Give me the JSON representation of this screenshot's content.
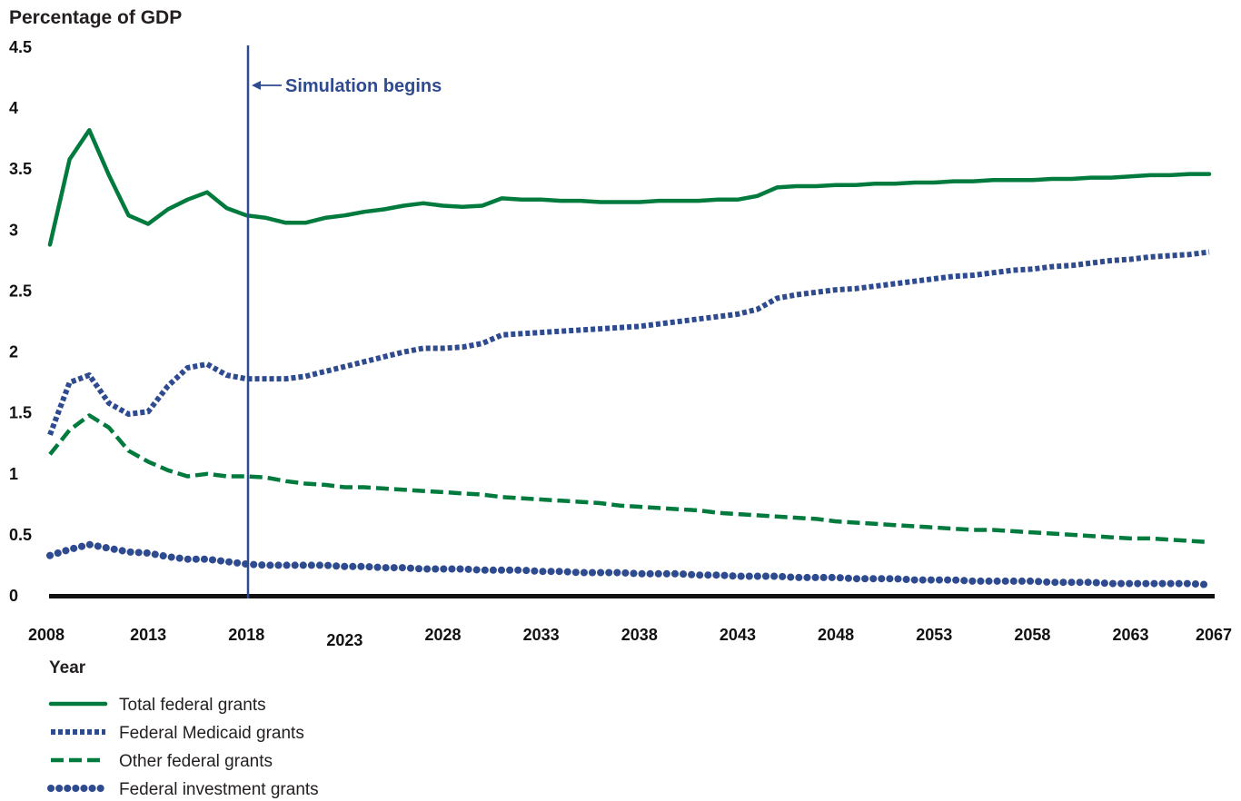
{
  "chart_data": {
    "type": "line",
    "ylabel": "Percentage of GDP",
    "xlabel": "Year",
    "ylim": [
      0,
      4.5
    ],
    "xlim": [
      2008,
      2067
    ],
    "y_ticks": [
      "0",
      "0.5",
      "1",
      "1.5",
      "2",
      "2.5",
      "3",
      "3.5",
      "4",
      "4.5"
    ],
    "x_ticks": [
      "2008",
      "2013",
      "2018",
      "2023",
      "2028",
      "2033",
      "2038",
      "2043",
      "2048",
      "2053",
      "2058",
      "2063",
      "2067"
    ],
    "grid": false,
    "legend_position": "bottom-left",
    "annotation": {
      "text": "Simulation begins",
      "x": 2018
    },
    "x": [
      2008,
      2009,
      2010,
      2011,
      2012,
      2013,
      2014,
      2015,
      2016,
      2017,
      2018,
      2019,
      2020,
      2021,
      2022,
      2023,
      2024,
      2025,
      2026,
      2027,
      2028,
      2029,
      2030,
      2031,
      2032,
      2033,
      2034,
      2035,
      2036,
      2037,
      2038,
      2039,
      2040,
      2041,
      2042,
      2043,
      2044,
      2045,
      2046,
      2047,
      2048,
      2049,
      2050,
      2051,
      2052,
      2053,
      2054,
      2055,
      2056,
      2057,
      2058,
      2059,
      2060,
      2061,
      2062,
      2063,
      2064,
      2065,
      2066,
      2067
    ],
    "series": [
      {
        "name": "Total federal grants",
        "color": "#007a3d",
        "style": "solid",
        "values": [
          2.88,
          3.58,
          3.82,
          3.45,
          3.12,
          3.05,
          3.17,
          3.25,
          3.31,
          3.18,
          3.12,
          3.1,
          3.06,
          3.06,
          3.1,
          3.12,
          3.15,
          3.17,
          3.2,
          3.22,
          3.2,
          3.19,
          3.2,
          3.26,
          3.25,
          3.25,
          3.24,
          3.24,
          3.23,
          3.23,
          3.23,
          3.24,
          3.24,
          3.24,
          3.25,
          3.25,
          3.28,
          3.35,
          3.36,
          3.36,
          3.37,
          3.37,
          3.38,
          3.38,
          3.39,
          3.39,
          3.4,
          3.4,
          3.41,
          3.41,
          3.41,
          3.42,
          3.42,
          3.43,
          3.43,
          3.44,
          3.45,
          3.45,
          3.46,
          3.46
        ]
      },
      {
        "name": "Federal Medicaid grants",
        "color": "#2f4b8f",
        "style": "dotted",
        "values": [
          1.32,
          1.75,
          1.81,
          1.58,
          1.49,
          1.51,
          1.72,
          1.87,
          1.9,
          1.81,
          1.78,
          1.78,
          1.78,
          1.8,
          1.84,
          1.88,
          1.92,
          1.96,
          2.0,
          2.03,
          2.03,
          2.04,
          2.07,
          2.14,
          2.15,
          2.16,
          2.17,
          2.18,
          2.19,
          2.2,
          2.21,
          2.23,
          2.25,
          2.27,
          2.29,
          2.31,
          2.35,
          2.44,
          2.47,
          2.49,
          2.51,
          2.52,
          2.54,
          2.56,
          2.58,
          2.6,
          2.62,
          2.63,
          2.65,
          2.67,
          2.68,
          2.7,
          2.71,
          2.73,
          2.75,
          2.76,
          2.78,
          2.79,
          2.8,
          2.82
        ]
      },
      {
        "name": "Other federal grants",
        "color": "#007a3d",
        "style": "dashed",
        "values": [
          1.16,
          1.36,
          1.48,
          1.38,
          1.19,
          1.1,
          1.03,
          0.98,
          1.0,
          0.98,
          0.98,
          0.97,
          0.94,
          0.92,
          0.91,
          0.89,
          0.89,
          0.88,
          0.87,
          0.86,
          0.85,
          0.84,
          0.83,
          0.81,
          0.8,
          0.79,
          0.78,
          0.77,
          0.76,
          0.74,
          0.73,
          0.72,
          0.71,
          0.7,
          0.68,
          0.67,
          0.66,
          0.65,
          0.64,
          0.63,
          0.61,
          0.6,
          0.59,
          0.58,
          0.57,
          0.56,
          0.55,
          0.54,
          0.54,
          0.53,
          0.52,
          0.51,
          0.5,
          0.49,
          0.48,
          0.47,
          0.47,
          0.46,
          0.45,
          0.44
        ]
      },
      {
        "name": "Federal investment grants",
        "color": "#2f4b8f",
        "style": "beaded",
        "values": [
          0.33,
          0.38,
          0.42,
          0.39,
          0.36,
          0.35,
          0.32,
          0.3,
          0.3,
          0.28,
          0.26,
          0.25,
          0.25,
          0.25,
          0.25,
          0.24,
          0.24,
          0.23,
          0.23,
          0.22,
          0.22,
          0.22,
          0.21,
          0.21,
          0.21,
          0.2,
          0.2,
          0.19,
          0.19,
          0.19,
          0.18,
          0.18,
          0.18,
          0.17,
          0.17,
          0.16,
          0.16,
          0.16,
          0.15,
          0.15,
          0.15,
          0.14,
          0.14,
          0.14,
          0.13,
          0.13,
          0.13,
          0.12,
          0.12,
          0.12,
          0.12,
          0.11,
          0.11,
          0.11,
          0.1,
          0.1,
          0.1,
          0.1,
          0.1,
          0.09
        ]
      }
    ]
  }
}
